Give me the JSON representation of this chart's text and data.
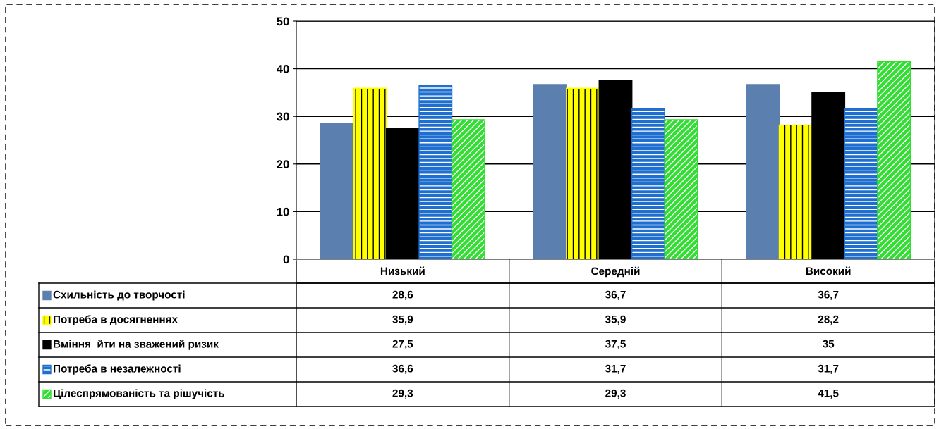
{
  "chart_data": {
    "type": "bar",
    "categories": [
      "Низький",
      "Середній",
      "Високий"
    ],
    "series": [
      {
        "name": "Схильність до творчості",
        "color": "#5b7fae",
        "values": [
          28.6,
          36.7,
          36.7
        ],
        "value_labels": [
          "28,6",
          "36,7",
          "36,7"
        ]
      },
      {
        "name": "Потреба в досягненнях",
        "color": "#ffff00",
        "values": [
          35.9,
          35.9,
          28.2
        ],
        "value_labels": [
          "35,9",
          "35,9",
          "28,2"
        ]
      },
      {
        "name": "Вміння  йти на зважений ризик",
        "color": "#000000",
        "values": [
          27.5,
          37.5,
          35
        ],
        "value_labels": [
          "27,5",
          "37,5",
          "35"
        ]
      },
      {
        "name": "Потреба в незалежності",
        "color": "#1f6fd0",
        "values": [
          36.6,
          31.7,
          31.7
        ],
        "value_labels": [
          "36,6",
          "31,7",
          "31,7"
        ]
      },
      {
        "name": "Цілеспрямованість та рішучість",
        "color": "#33dd33",
        "values": [
          29.3,
          29.3,
          41.5
        ],
        "value_labels": [
          "29,3",
          "29,3",
          "41,5"
        ]
      }
    ],
    "ylim": [
      0,
      50
    ],
    "yticks": [
      0,
      10,
      20,
      30,
      40,
      50
    ],
    "grid": "y",
    "legend": "bottom"
  }
}
